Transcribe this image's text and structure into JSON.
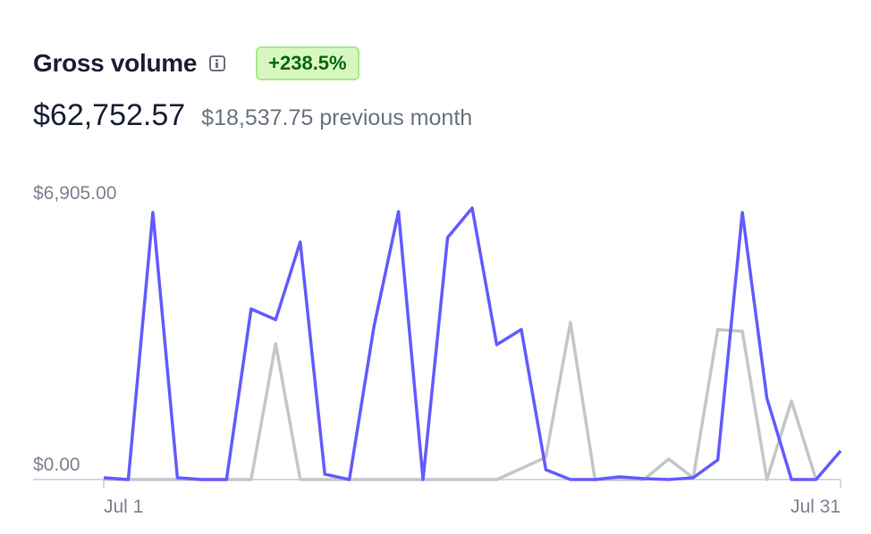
{
  "header": {
    "title": "Gross volume",
    "change": "+238.5%",
    "total": "$62,752.57",
    "previous": "$18,537.75 previous month"
  },
  "chart_data": {
    "type": "line",
    "categories": [
      "Jul 1",
      null,
      null,
      null,
      null,
      null,
      null,
      null,
      null,
      null,
      null,
      null,
      null,
      null,
      null,
      null,
      null,
      null,
      null,
      null,
      null,
      null,
      null,
      null,
      null,
      null,
      null,
      null,
      null,
      null,
      "Jul 31"
    ],
    "series": [
      {
        "color": "#635bff",
        "values": [
          45,
          0,
          6791,
          45,
          0,
          0,
          4338,
          4066,
          6042,
          136,
          0,
          3884,
          6814,
          0,
          6155,
          6905,
          3430,
          3816,
          250,
          0,
          0,
          68,
          23,
          0,
          45,
          500,
          6791,
          2067,
          0,
          0,
          727
        ]
      },
      {
        "color": "#c4c6cc",
        "values": [
          0,
          0,
          0,
          0,
          0,
          0,
          0,
          3453,
          0,
          0,
          0,
          0,
          0,
          0,
          0,
          0,
          0,
          280,
          568,
          3998,
          0,
          0,
          0,
          522,
          45,
          3816,
          3771,
          0,
          1999,
          0,
          null
        ]
      }
    ],
    "ylim": [
      0,
      6905
    ],
    "yticks": [
      {
        "value": 6905,
        "label": "$6,905.00"
      },
      {
        "value": 0,
        "label": "$0.00"
      }
    ],
    "grid": false
  }
}
